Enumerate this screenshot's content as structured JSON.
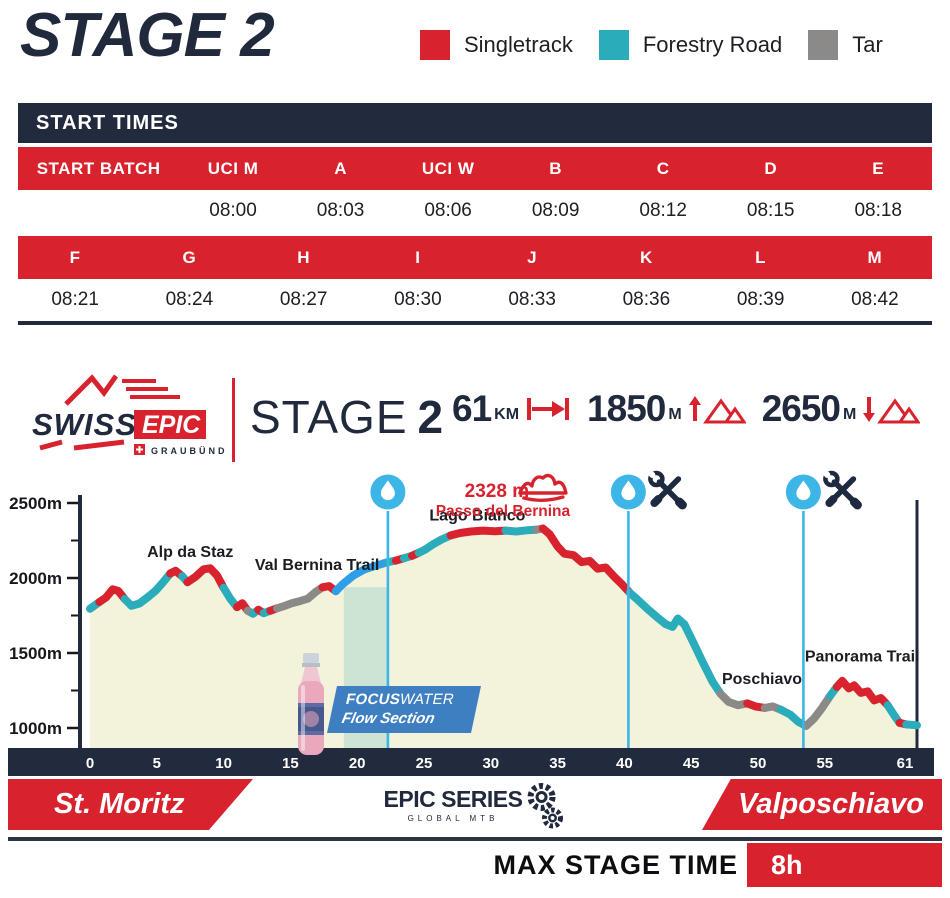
{
  "page": {
    "title": "STAGE 2"
  },
  "legend": {
    "items": [
      {
        "label": "Singletrack",
        "color": "#d8232e"
      },
      {
        "label": "Forestry Road",
        "color": "#2bacba"
      },
      {
        "label": "Tar",
        "color": "#8c8989"
      }
    ]
  },
  "start_times": {
    "title": "START TIMES",
    "groups": [
      {
        "batches": [
          "START BATCH",
          "UCI M",
          "A",
          "UCI W",
          "B",
          "C",
          "D",
          "E"
        ],
        "times": [
          "",
          "08:00",
          "08:03",
          "08:06",
          "08:09",
          "08:12",
          "08:15",
          "08:18"
        ]
      },
      {
        "batches": [
          "F",
          "G",
          "H",
          "I",
          "J",
          "K",
          "L",
          "M"
        ],
        "times": [
          "08:21",
          "08:24",
          "08:27",
          "08:30",
          "08:33",
          "08:36",
          "08:39",
          "08:42"
        ]
      }
    ]
  },
  "stage_banner": {
    "brand": {
      "name_primary": "SWISS",
      "name_secondary": "EPIC",
      "region": "GRAUBÜNDEN"
    },
    "stage_label": "STAGE",
    "stage_number": "2",
    "stats": [
      {
        "value": "61",
        "unit": "KM",
        "icon": "distance-icon"
      },
      {
        "value": "1850",
        "unit": "M",
        "icon": "ascent-icon"
      },
      {
        "value": "2650",
        "unit": "M",
        "icon": "descent-icon"
      }
    ]
  },
  "chart_data": {
    "type": "area",
    "title": "",
    "xlabel": "km",
    "ylabel": "m",
    "y_unit": "m",
    "x_ticks": [
      0,
      5,
      10,
      15,
      20,
      25,
      30,
      35,
      40,
      45,
      50,
      55,
      61
    ],
    "y_ticks": [
      2500,
      2000,
      1500,
      1000
    ],
    "y_minor_ticks": [
      2250,
      1750,
      1250
    ],
    "xlim": [
      0,
      61.9
    ],
    "ylim": [
      870,
      2550
    ],
    "grid": false,
    "area_fill": "#f3f3db",
    "surface_colors": {
      "singletrack": "#d8232e",
      "forestry": "#2bacba",
      "tar": "#8c8989",
      "flow": "#2e9ee8"
    },
    "surface_key": {
      "s": "singletrack",
      "f": "forestry",
      "t": "tar",
      "b": "flow"
    },
    "peak": {
      "elevation_label": "2328 m",
      "name": "Passo del Bernina",
      "km": 33.9
    },
    "route_labels": [
      {
        "text": "Alp da Staz",
        "km": 7.5,
        "elev": 2140
      },
      {
        "text": "Val Bernina Trail",
        "km": 17.0,
        "elev": 2055
      },
      {
        "text": "Lago Bianco",
        "km": 29.0,
        "elev": 2385
      },
      {
        "text": "Poschiavo",
        "km": 50.3,
        "elev": 1295
      },
      {
        "text": "Panorama Trail",
        "km": 57.8,
        "elev": 1445
      }
    ],
    "aid_stations": [
      {
        "km": 22.3,
        "water": true,
        "tech": false
      },
      {
        "km": 40.3,
        "water": true,
        "tech": true
      },
      {
        "km": 53.4,
        "water": true,
        "tech": true
      }
    ],
    "flow_section": {
      "from_km": 19,
      "to_km": 22.4,
      "sponsor_bold": "FOCUS",
      "sponsor_rest": "WATER",
      "label": "Flow Section"
    },
    "profile": [
      [
        0,
        1795,
        "f"
      ],
      [
        0.7,
        1840,
        "f"
      ],
      [
        1.2,
        1870,
        "s"
      ],
      [
        1.7,
        1925,
        "s"
      ],
      [
        2.1,
        1915,
        "s"
      ],
      [
        2.6,
        1860,
        "s"
      ],
      [
        3.1,
        1815,
        "f"
      ],
      [
        3.7,
        1830,
        "f"
      ],
      [
        4.3,
        1870,
        "f"
      ],
      [
        4.9,
        1915,
        "f"
      ],
      [
        5.5,
        1975,
        "f"
      ],
      [
        6.0,
        2030,
        "f"
      ],
      [
        6.4,
        2048,
        "s"
      ],
      [
        6.9,
        2012,
        "s"
      ],
      [
        7.3,
        1972,
        "f"
      ],
      [
        7.9,
        2008,
        "s"
      ],
      [
        8.5,
        2058,
        "s"
      ],
      [
        9.0,
        2065,
        "s"
      ],
      [
        9.5,
        2018,
        "s"
      ],
      [
        10.0,
        1935,
        "s"
      ],
      [
        10.5,
        1862,
        "f"
      ],
      [
        11.0,
        1806,
        "f"
      ],
      [
        11.4,
        1832,
        "s"
      ],
      [
        11.8,
        1782,
        "s"
      ],
      [
        12.2,
        1762,
        "t"
      ],
      [
        12.6,
        1788,
        "f"
      ],
      [
        13.0,
        1766,
        "s"
      ],
      [
        13.5,
        1782,
        "f"
      ],
      [
        14.0,
        1798,
        "s"
      ],
      [
        14.5,
        1812,
        "t"
      ],
      [
        15.1,
        1832,
        "t"
      ],
      [
        15.7,
        1846,
        "t"
      ],
      [
        16.3,
        1862,
        "t"
      ],
      [
        16.9,
        1908,
        "t"
      ],
      [
        17.4,
        1938,
        "t"
      ],
      [
        17.9,
        1946,
        "s"
      ],
      [
        18.4,
        1912,
        "s"
      ],
      [
        18.9,
        1958,
        "b"
      ],
      [
        19.7,
        2016,
        "b"
      ],
      [
        20.5,
        2056,
        "b"
      ],
      [
        21.4,
        2082,
        "b"
      ],
      [
        22.3,
        2106,
        "b"
      ],
      [
        22.9,
        2116,
        "f"
      ],
      [
        23.5,
        2132,
        "s"
      ],
      [
        24.1,
        2148,
        "f"
      ],
      [
        24.6,
        2168,
        "s"
      ],
      [
        25.1,
        2190,
        "f"
      ],
      [
        25.7,
        2226,
        "f"
      ],
      [
        26.3,
        2256,
        "f"
      ],
      [
        27.0,
        2284,
        "f"
      ],
      [
        27.7,
        2300,
        "s"
      ],
      [
        28.5,
        2310,
        "s"
      ],
      [
        29.4,
        2316,
        "s"
      ],
      [
        30.3,
        2312,
        "s"
      ],
      [
        31.1,
        2316,
        "s"
      ],
      [
        31.9,
        2310,
        "f"
      ],
      [
        32.7,
        2318,
        "f"
      ],
      [
        33.4,
        2322,
        "f"
      ],
      [
        33.9,
        2330,
        "t"
      ],
      [
        34.4,
        2292,
        "s"
      ],
      [
        35.0,
        2210,
        "s"
      ],
      [
        35.5,
        2162,
        "s"
      ],
      [
        36.2,
        2152,
        "s"
      ],
      [
        36.8,
        2106,
        "s"
      ],
      [
        37.4,
        2114,
        "s"
      ],
      [
        38.0,
        2062,
        "s"
      ],
      [
        38.6,
        2070,
        "s"
      ],
      [
        39.2,
        2012,
        "s"
      ],
      [
        39.8,
        1960,
        "s"
      ],
      [
        40.4,
        1902,
        "s"
      ],
      [
        41.0,
        1854,
        "f"
      ],
      [
        41.7,
        1796,
        "f"
      ],
      [
        42.4,
        1742,
        "f"
      ],
      [
        43.1,
        1692,
        "f"
      ],
      [
        43.6,
        1674,
        "f"
      ],
      [
        44.0,
        1730,
        "f"
      ],
      [
        44.5,
        1690,
        "f"
      ],
      [
        45.2,
        1562,
        "f"
      ],
      [
        45.9,
        1432,
        "f"
      ],
      [
        46.6,
        1308,
        "f"
      ],
      [
        47.2,
        1228,
        "f"
      ],
      [
        47.8,
        1174,
        "t"
      ],
      [
        48.5,
        1152,
        "t"
      ],
      [
        49.2,
        1164,
        "t"
      ],
      [
        49.8,
        1144,
        "s"
      ],
      [
        50.5,
        1134,
        "s"
      ],
      [
        51.1,
        1144,
        "t"
      ],
      [
        51.7,
        1122,
        "t"
      ],
      [
        52.4,
        1090,
        "f"
      ],
      [
        53.0,
        1042,
        "f"
      ],
      [
        53.6,
        1014,
        "f"
      ],
      [
        54.2,
        1064,
        "t"
      ],
      [
        54.8,
        1134,
        "t"
      ],
      [
        55.4,
        1214,
        "t"
      ],
      [
        55.9,
        1274,
        "f"
      ],
      [
        56.3,
        1314,
        "s"
      ],
      [
        56.8,
        1264,
        "s"
      ],
      [
        57.2,
        1284,
        "s"
      ],
      [
        57.7,
        1234,
        "s"
      ],
      [
        58.2,
        1244,
        "s"
      ],
      [
        58.7,
        1184,
        "s"
      ],
      [
        59.2,
        1200,
        "s"
      ],
      [
        59.7,
        1152,
        "s"
      ],
      [
        60.2,
        1084,
        "f"
      ],
      [
        60.6,
        1034,
        "f"
      ],
      [
        61.1,
        1024,
        "s"
      ],
      [
        61.9,
        1018,
        "f"
      ]
    ]
  },
  "route_banner": {
    "start": "St. Moritz",
    "finish": "Valposchiavo",
    "series": "EPIC SERIES",
    "series_sub": "GLOBAL MTB"
  },
  "footer": {
    "label": "MAX STAGE TIME",
    "value": "8h"
  }
}
